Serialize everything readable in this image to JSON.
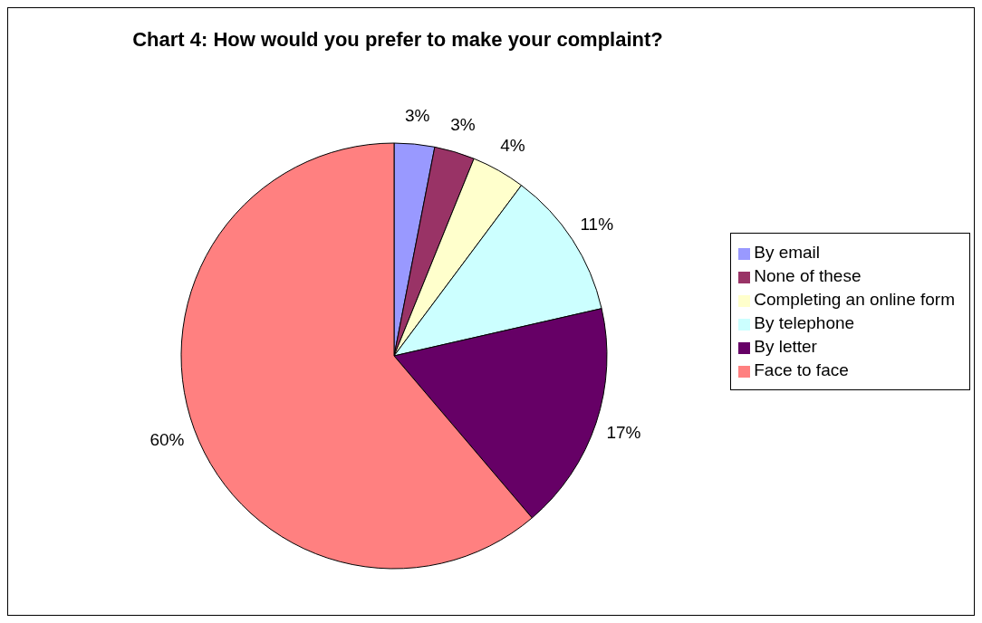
{
  "chart_data": {
    "type": "pie",
    "title": "Chart 4: How would you prefer to make your complaint?",
    "categories": [
      "By email",
      "None of these",
      "Completing an online form",
      "By telephone",
      "By letter",
      "Face to face"
    ],
    "values": [
      3,
      3,
      4,
      11,
      17,
      60
    ],
    "value_labels": [
      "3%",
      "3%",
      "4%",
      "11%",
      "17%",
      "60%"
    ],
    "colors": [
      "#9999ff",
      "#993366",
      "#ffffcc",
      "#ccffff",
      "#660066",
      "#ff8080"
    ],
    "legend": "right"
  }
}
